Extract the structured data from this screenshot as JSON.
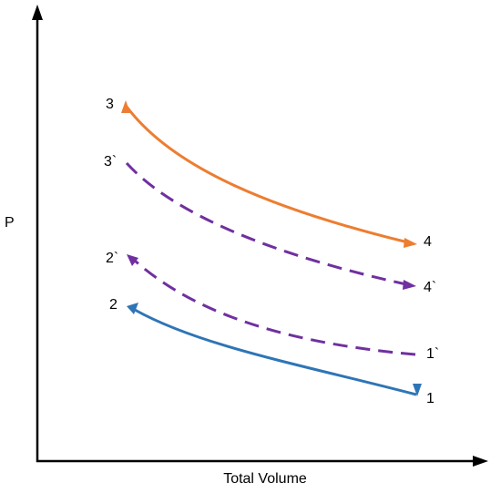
{
  "axes": {
    "y_label": "P",
    "x_label": "Total Volume"
  },
  "points": {
    "p1": "1",
    "p2": "2",
    "p3": "3",
    "p4": "4",
    "p1b": "1`",
    "p2b": "2`",
    "p3b": "3`",
    "p4b": "4`"
  },
  "colors": {
    "axis": "#000000",
    "hot_cycle": "#ED7D31",
    "cold_cycle": "#2E75B6",
    "intermediate_cycle": "#7030A0"
  }
}
